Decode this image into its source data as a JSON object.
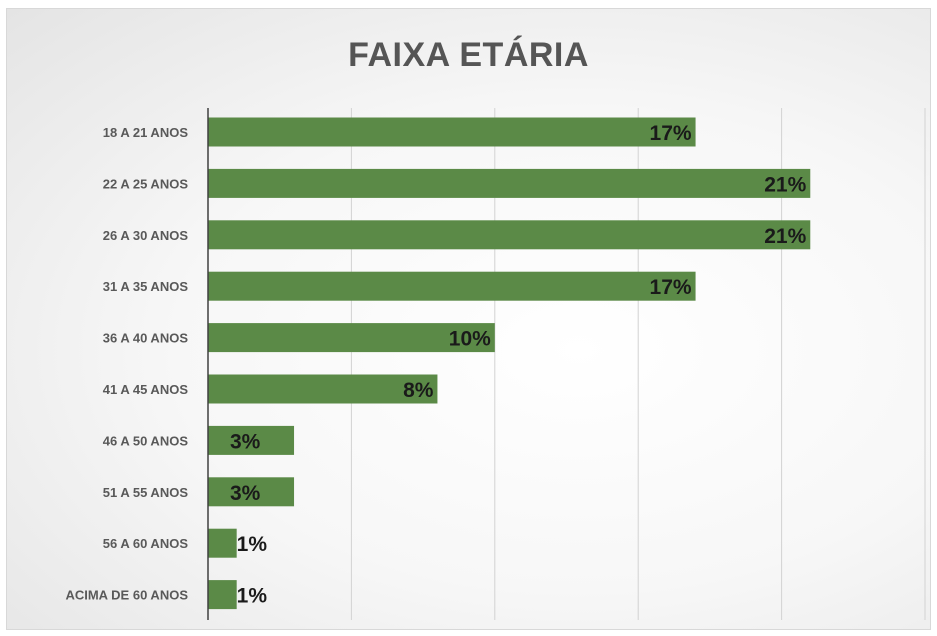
{
  "chart_data": {
    "type": "bar",
    "orientation": "horizontal",
    "title": "FAIXA ETÁRIA",
    "categories": [
      "18 A 21 ANOS",
      "22 A 25 ANOS",
      "26 A 30 ANOS",
      "31 A 35 ANOS",
      "36 A 40 ANOS",
      "41 A 45 ANOS",
      "46 A 50 ANOS",
      "51 A 55 ANOS",
      "56 A 60 ANOS",
      "ACIMA DE 60 ANOS"
    ],
    "values": [
      17,
      21,
      21,
      17,
      10,
      8,
      3,
      3,
      1,
      1
    ],
    "data_labels": [
      "17%",
      "21%",
      "21%",
      "17%",
      "10%",
      "8%",
      "3%",
      "3%",
      "1%",
      "1%"
    ],
    "xlim": [
      0,
      25
    ],
    "grid": true,
    "legend": "none",
    "colors": {
      "bar": "#5b8a47",
      "grid": "#d2d2d2",
      "axis": "#404040"
    }
  }
}
